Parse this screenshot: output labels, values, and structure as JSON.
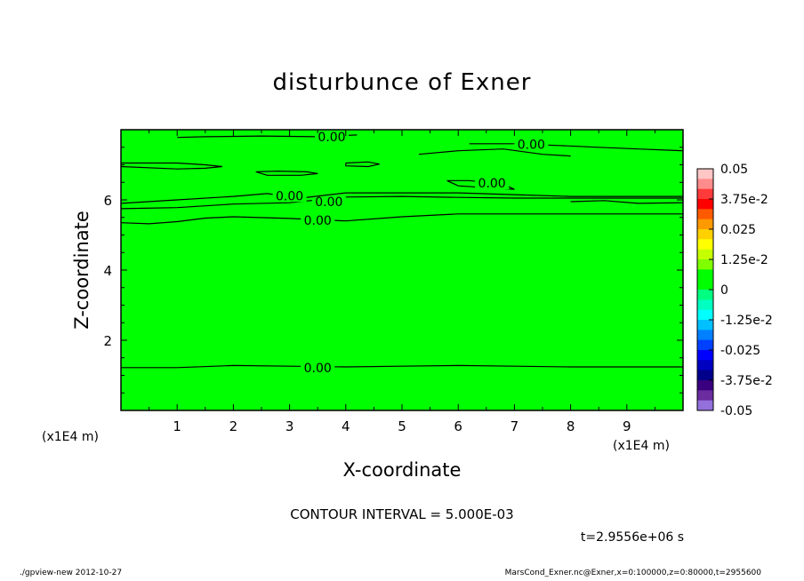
{
  "chart_data": {
    "type": "contour",
    "title": "disturbunce of Exner",
    "xlabel": "X-coordinate",
    "ylabel": "Z-coordinate",
    "x_unit": "(x1E4 m)",
    "x_unit_right": "(x1E4 m)",
    "xlim": [
      0,
      10
    ],
    "ylim": [
      0,
      8
    ],
    "x_ticks": [
      "1",
      "2",
      "3",
      "4",
      "5",
      "6",
      "7",
      "8",
      "9"
    ],
    "y_ticks": [
      "2",
      "4",
      "6"
    ],
    "contour_interval_text": "CONTOUR INTERVAL = 5.000E-03",
    "time_text": "t=2.9556e+06 s",
    "contours": [
      {
        "label": "0.00",
        "points": [
          [
            0,
            1.22
          ],
          [
            1,
            1.22
          ],
          [
            2,
            1.28
          ],
          [
            3,
            1.26
          ],
          [
            4,
            1.24
          ],
          [
            5,
            1.26
          ],
          [
            6,
            1.28
          ],
          [
            7,
            1.26
          ],
          [
            8,
            1.24
          ],
          [
            9,
            1.24
          ],
          [
            10,
            1.24
          ]
        ],
        "label_at": [
          3.5,
          1.22
        ]
      },
      {
        "label": "0.00",
        "points": [
          [
            0,
            5.35
          ],
          [
            0.5,
            5.32
          ],
          [
            1,
            5.38
          ],
          [
            1.5,
            5.48
          ],
          [
            2,
            5.52
          ],
          [
            3,
            5.47
          ],
          [
            4,
            5.4
          ],
          [
            5,
            5.52
          ],
          [
            6,
            5.6
          ],
          [
            7,
            5.6
          ],
          [
            8,
            5.6
          ],
          [
            9,
            5.6
          ],
          [
            10,
            5.6
          ]
        ],
        "label_at": [
          3.5,
          5.42
        ]
      },
      {
        "label": "0.00",
        "points": [
          [
            0,
            5.75
          ],
          [
            1,
            5.78
          ],
          [
            2,
            5.88
          ],
          [
            3,
            5.92
          ],
          [
            4,
            6.08
          ],
          [
            5,
            6.1
          ],
          [
            6,
            6.07
          ],
          [
            7,
            6.05
          ],
          [
            8,
            6.05
          ],
          [
            9,
            6.05
          ],
          [
            10,
            6.05
          ]
        ],
        "label_at": [
          3.7,
          5.95
        ]
      },
      {
        "label": "0.00",
        "points": [
          [
            0,
            5.9
          ],
          [
            1,
            6.0
          ],
          [
            2,
            6.1
          ],
          [
            2.6,
            6.18
          ],
          [
            3.2,
            6.05
          ],
          [
            4,
            6.2
          ],
          [
            5,
            6.2
          ],
          [
            6,
            6.2
          ],
          [
            7,
            6.15
          ],
          [
            8,
            6.1
          ],
          [
            9,
            6.1
          ],
          [
            10,
            6.1
          ]
        ],
        "label_at": [
          3.0,
          6.12
        ]
      },
      {
        "label": "0.00",
        "points": [
          [
            5.8,
            6.55
          ],
          [
            6.2,
            6.55
          ],
          [
            6.8,
            6.45
          ],
          [
            7.0,
            6.3
          ],
          [
            6.5,
            6.35
          ],
          [
            6.0,
            6.4
          ],
          [
            5.8,
            6.55
          ]
        ],
        "label_at": [
          6.6,
          6.48
        ]
      },
      {
        "label": "",
        "points": [
          [
            0,
            7.05
          ],
          [
            1,
            7.05
          ],
          [
            1.5,
            7.0
          ],
          [
            1.8,
            6.95
          ],
          [
            1.5,
            6.9
          ],
          [
            1,
            6.88
          ],
          [
            0,
            6.95
          ]
        ],
        "label_at": null
      },
      {
        "label": "",
        "points": [
          [
            2.4,
            6.8
          ],
          [
            2.8,
            6.82
          ],
          [
            3.3,
            6.8
          ],
          [
            3.5,
            6.75
          ],
          [
            3.2,
            6.7
          ],
          [
            2.6,
            6.7
          ],
          [
            2.4,
            6.8
          ]
        ],
        "label_at": null
      },
      {
        "label": "",
        "points": [
          [
            4.0,
            7.05
          ],
          [
            4.4,
            7.08
          ],
          [
            4.6,
            7.02
          ],
          [
            4.4,
            6.95
          ],
          [
            4.0,
            6.97
          ],
          [
            4.0,
            7.05
          ]
        ],
        "label_at": null
      },
      {
        "label": "0.00",
        "points": [
          [
            6.2,
            7.6
          ],
          [
            7,
            7.6
          ],
          [
            7.8,
            7.55
          ],
          [
            8.5,
            7.5
          ],
          [
            9.2,
            7.45
          ],
          [
            10,
            7.4
          ]
        ],
        "label_at": [
          7.3,
          7.58
        ]
      },
      {
        "label": "0.00",
        "points": [
          [
            1.0,
            7.78
          ],
          [
            1.5,
            7.8
          ],
          [
            2.5,
            7.82
          ],
          [
            3.5,
            7.8
          ],
          [
            4.2,
            7.85
          ]
        ],
        "label_at": [
          3.75,
          7.8
        ]
      },
      {
        "label": "",
        "points": [
          [
            5.3,
            7.3
          ],
          [
            6.0,
            7.4
          ],
          [
            6.8,
            7.45
          ],
          [
            7.5,
            7.3
          ],
          [
            8.0,
            7.25
          ]
        ],
        "label_at": null
      },
      {
        "label": "",
        "points": [
          [
            8.0,
            5.95
          ],
          [
            8.6,
            5.98
          ],
          [
            9.2,
            5.9
          ],
          [
            10,
            5.92
          ]
        ],
        "label_at": null
      }
    ],
    "colorbar": {
      "labels": [
        "0.05",
        "3.75e-2",
        "0.025",
        "1.25e-2",
        "0",
        "-1.25e-2",
        "-0.025",
        "-3.75e-2",
        "-0.05"
      ],
      "colors": [
        "#ffc6c6",
        "#ff8c8c",
        "#ff3a3a",
        "#ff0000",
        "#ff5a00",
        "#ff9900",
        "#ffd000",
        "#ffff00",
        "#c6ff00",
        "#7fff00",
        "#00ff00",
        "#00ff00",
        "#00ff80",
        "#00ffc0",
        "#00ffff",
        "#00c0ff",
        "#0080ff",
        "#0040ff",
        "#0000ff",
        "#0000c0",
        "#00008b",
        "#3a007f",
        "#6a2c9f",
        "#9370db"
      ],
      "tick_values": [
        0.05,
        0.0375,
        0.025,
        0.0125,
        0,
        -0.0125,
        -0.025,
        -0.0375,
        -0.05
      ]
    },
    "field_color": "#00ff00"
  },
  "footer": {
    "left": "./gpview-new   2012-10-27",
    "right": "MarsCond_Exner.nc@Exner,x=0:100000,z=0:80000,t=2955600"
  }
}
